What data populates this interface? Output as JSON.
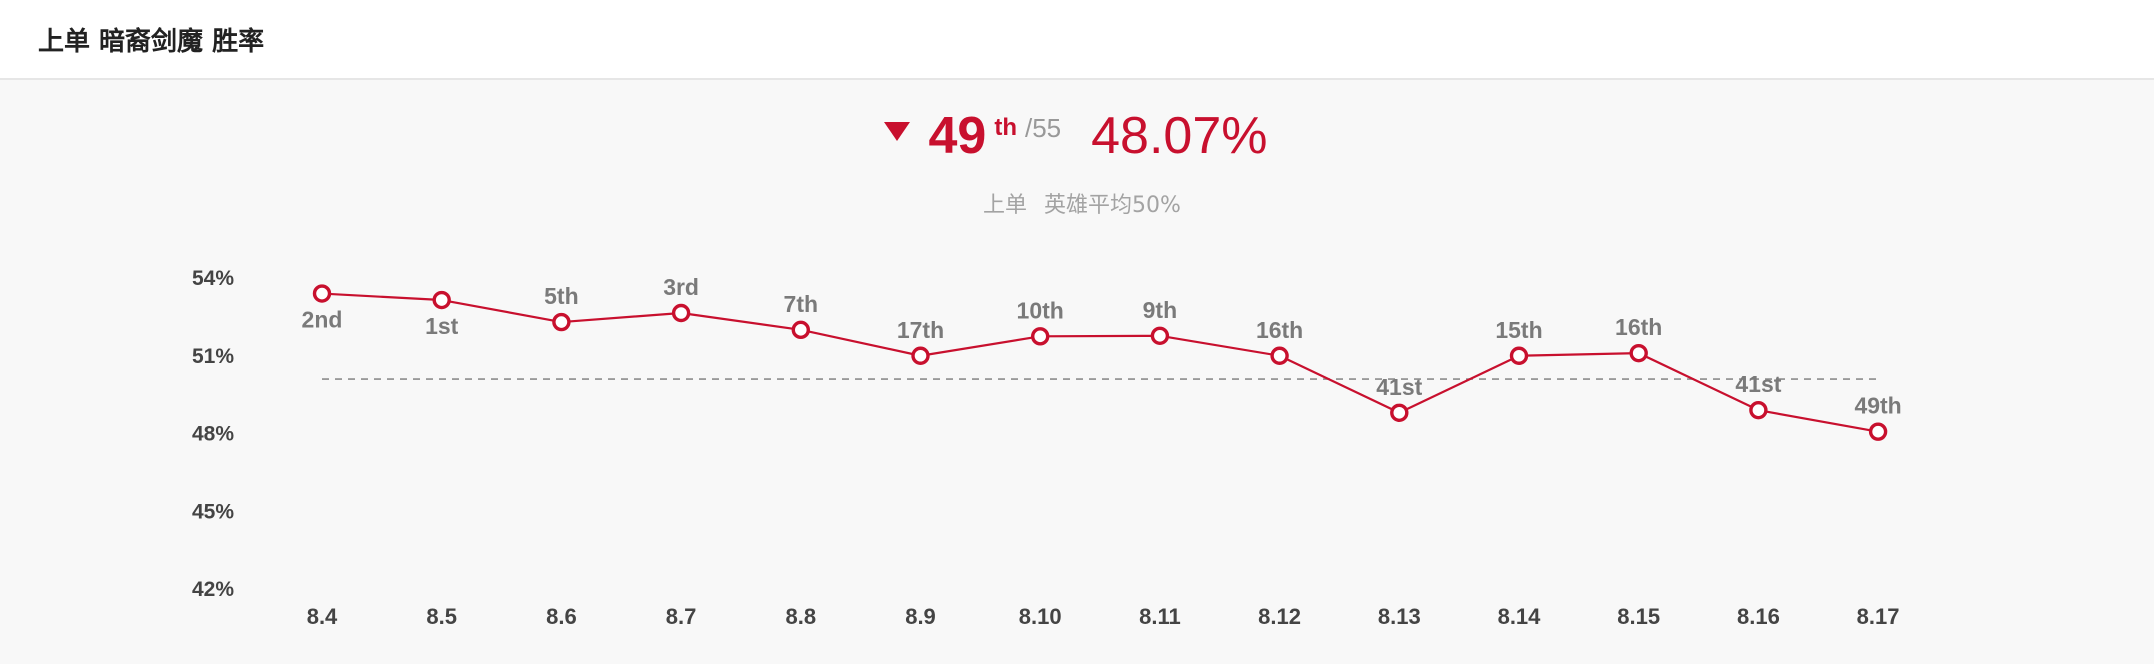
{
  "header": {
    "title": "上单 暗裔剑魔 胜率"
  },
  "summary": {
    "trend": "down",
    "rank": "49",
    "rank_suffix": "th",
    "rank_total": "/55",
    "win_rate": "48.07%",
    "subtitle_prefix": "上单",
    "subtitle_text": "英雄平均50%"
  },
  "colors": {
    "accent": "#c8102e",
    "label_gray": "#7a7a7a",
    "axis_text": "#444444",
    "reference_line": "#8c8c8c",
    "panel_background": "#f8f8f8"
  },
  "chart_data": {
    "type": "line",
    "title": "",
    "xlabel": "",
    "ylabel": "",
    "categories": [
      "8.4",
      "8.5",
      "8.6",
      "8.7",
      "8.8",
      "8.9",
      "8.10",
      "8.11",
      "8.12",
      "8.13",
      "8.14",
      "8.15",
      "8.16",
      "8.17"
    ],
    "series": [
      {
        "values": [
          53.4,
          53.15,
          52.3,
          52.65,
          52.0,
          51.0,
          51.75,
          51.77,
          51.0,
          48.8,
          51.0,
          51.1,
          48.9,
          48.07
        ],
        "rank_labels": [
          "2nd",
          "1st",
          "5th",
          "3rd",
          "7th",
          "17th",
          "10th",
          "9th",
          "16th",
          "41st",
          "15th",
          "16th",
          "41st",
          "49th"
        ],
        "rank_label_positions": [
          "below",
          "below",
          "above",
          "above",
          "above",
          "above",
          "above",
          "above",
          "above",
          "above",
          "above",
          "above",
          "above",
          "above"
        ]
      }
    ],
    "reference_line": 50.1,
    "y_ticks": [
      42,
      45,
      48,
      51,
      54
    ],
    "y_tick_labels": [
      "42%",
      "45%",
      "48%",
      "51%",
      "54%"
    ],
    "ylim": [
      42,
      54
    ],
    "grid": false,
    "legend": "none"
  }
}
